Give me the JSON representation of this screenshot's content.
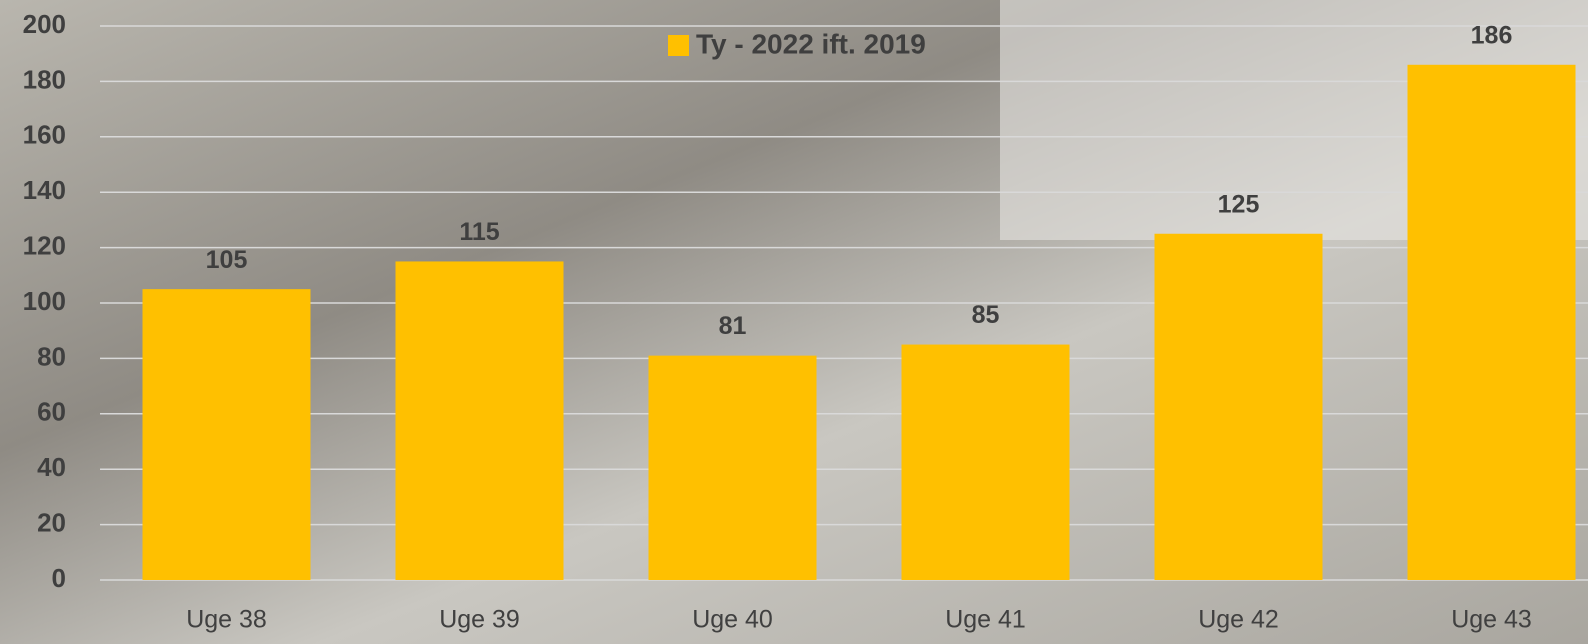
{
  "chart_data": {
    "type": "bar",
    "categories": [
      "Uge 38",
      "Uge 39",
      "Uge 40",
      "Uge 41",
      "Uge 42",
      "Uge 43"
    ],
    "series": [
      {
        "name": "Ty - 2022 ift. 2019",
        "color": "#ffc000",
        "values": [
          105,
          115,
          81,
          85,
          125,
          186
        ]
      }
    ],
    "ylim": [
      0,
      200
    ],
    "yticks": [
      0,
      20,
      40,
      60,
      80,
      100,
      120,
      140,
      160,
      180,
      200
    ],
    "grid": true,
    "legend": "top"
  }
}
